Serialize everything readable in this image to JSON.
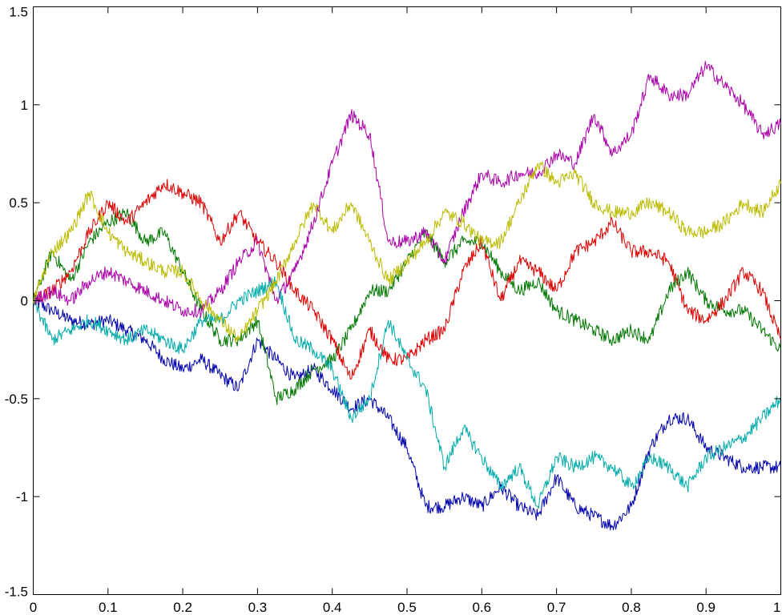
{
  "chart_data": {
    "type": "line",
    "xlim": [
      0,
      1
    ],
    "ylim": [
      -1.5,
      1.5
    ],
    "x_ticks": [
      "0",
      "0.1",
      "0.2",
      "0.3",
      "0.4",
      "0.5",
      "0.6",
      "0.7",
      "0.8",
      "0.9",
      "1"
    ],
    "y_ticks": [
      "1.5",
      "1",
      "0.5",
      "0",
      "-0.5",
      "-1",
      "-1.5"
    ],
    "y_tick_values": [
      1.5,
      1,
      0.5,
      0,
      -0.5,
      -1,
      -1.5
    ],
    "x_tick_values": [
      0,
      0.1,
      0.2,
      0.3,
      0.4,
      0.5,
      0.6,
      0.7,
      0.8,
      0.9,
      1
    ],
    "grid": false,
    "legend": "none",
    "x": [
      0,
      0.025,
      0.05,
      0.075,
      0.1,
      0.125,
      0.15,
      0.175,
      0.2,
      0.225,
      0.25,
      0.275,
      0.3,
      0.325,
      0.35,
      0.375,
      0.4,
      0.425,
      0.45,
      0.475,
      0.5,
      0.525,
      0.55,
      0.575,
      0.6,
      0.625,
      0.65,
      0.675,
      0.7,
      0.725,
      0.75,
      0.775,
      0.8,
      0.825,
      0.85,
      0.875,
      0.9,
      0.925,
      0.95,
      0.975,
      1
    ],
    "series": [
      {
        "color": "#0000aa",
        "values": [
          0,
          -0.05,
          -0.1,
          -0.12,
          -0.1,
          -0.15,
          -0.2,
          -0.3,
          -0.35,
          -0.3,
          -0.38,
          -0.45,
          -0.2,
          -0.3,
          -0.4,
          -0.35,
          -0.45,
          -0.55,
          -0.5,
          -0.6,
          -0.75,
          -1.05,
          -1.05,
          -1.0,
          -1.05,
          -0.95,
          -1.05,
          -1.1,
          -0.9,
          -1.05,
          -1.1,
          -1.15,
          -1.05,
          -0.75,
          -0.6,
          -0.6,
          -0.75,
          -0.8,
          -0.85,
          -0.85,
          -0.85
        ]
      },
      {
        "color": "#007700",
        "values": [
          0,
          0.25,
          0.1,
          0.3,
          0.4,
          0.45,
          0.3,
          0.35,
          0.15,
          -0.05,
          -0.2,
          -0.2,
          -0.1,
          -0.5,
          -0.45,
          -0.35,
          -0.3,
          -0.15,
          0.05,
          0.05,
          0.2,
          0.35,
          0.2,
          0.3,
          0.3,
          0.15,
          0.05,
          0.1,
          -0.05,
          -0.1,
          -0.15,
          -0.2,
          -0.15,
          -0.2,
          0.05,
          0.15,
          0.0,
          -0.05,
          -0.05,
          -0.15,
          -0.25
        ]
      },
      {
        "color": "#dd0000",
        "values": [
          0,
          0.05,
          0.15,
          0.35,
          0.5,
          0.4,
          0.5,
          0.6,
          0.55,
          0.5,
          0.3,
          0.45,
          0.3,
          0.2,
          0.05,
          -0.05,
          -0.2,
          -0.4,
          -0.15,
          -0.3,
          -0.3,
          -0.2,
          -0.15,
          0.15,
          0.3,
          0.0,
          0.2,
          0.15,
          0.05,
          0.25,
          0.3,
          0.4,
          0.25,
          0.25,
          0.2,
          -0.05,
          -0.1,
          0.0,
          0.15,
          0.05,
          -0.2
        ]
      },
      {
        "color": "#00aaaa",
        "values": [
          0,
          -0.2,
          -0.15,
          -0.1,
          -0.15,
          -0.2,
          -0.15,
          -0.2,
          -0.25,
          -0.1,
          -0.1,
          0.0,
          0.05,
          0.1,
          -0.2,
          -0.25,
          -0.35,
          -0.6,
          -0.5,
          -0.1,
          -0.3,
          -0.45,
          -0.85,
          -0.65,
          -0.8,
          -0.95,
          -0.85,
          -1.05,
          -0.8,
          -0.85,
          -0.8,
          -0.85,
          -0.95,
          -0.8,
          -0.85,
          -0.95,
          -0.8,
          -0.75,
          -0.7,
          -0.6,
          -0.5
        ]
      },
      {
        "color": "#aa00aa",
        "values": [
          0,
          0.05,
          0.0,
          0.1,
          0.15,
          0.1,
          0.05,
          0.0,
          -0.05,
          -0.05,
          0.05,
          0.2,
          0.3,
          0.0,
          0.15,
          0.4,
          0.7,
          0.95,
          0.85,
          0.3,
          0.3,
          0.35,
          0.2,
          0.45,
          0.65,
          0.6,
          0.65,
          0.65,
          0.75,
          0.7,
          0.95,
          0.75,
          0.85,
          1.15,
          1.05,
          1.05,
          1.2,
          1.1,
          1.0,
          0.85,
          0.9
        ]
      },
      {
        "color": "#bbbb00",
        "values": [
          0,
          0.25,
          0.35,
          0.55,
          0.35,
          0.25,
          0.2,
          0.15,
          0.15,
          0.0,
          -0.1,
          -0.2,
          -0.05,
          0.1,
          0.3,
          0.5,
          0.35,
          0.5,
          0.3,
          0.1,
          0.2,
          0.3,
          0.45,
          0.4,
          0.3,
          0.3,
          0.5,
          0.7,
          0.6,
          0.65,
          0.5,
          0.45,
          0.45,
          0.5,
          0.45,
          0.35,
          0.35,
          0.4,
          0.5,
          0.45,
          0.6
        ]
      }
    ]
  }
}
